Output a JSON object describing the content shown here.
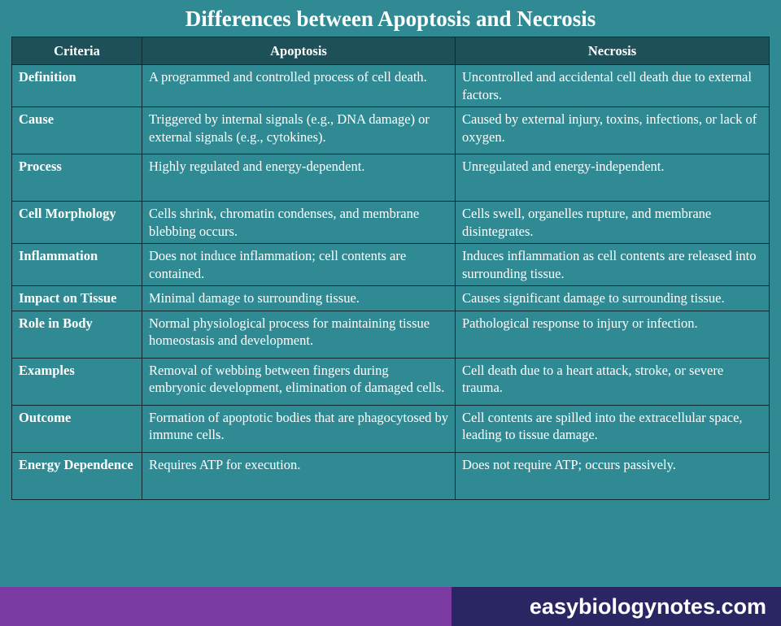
{
  "title": "Differences between Apoptosis and Necrosis",
  "columns": [
    "Criteria",
    "Apoptosis",
    "Necrosis"
  ],
  "rows": [
    {
      "criteria": "Definition",
      "a": "A programmed and controlled process of cell death.",
      "b": "Uncontrolled and accidental cell death due to external factors.",
      "tall": false
    },
    {
      "criteria": "Cause",
      "a": "Triggered by internal signals (e.g., DNA damage) or external signals (e.g., cytokines).",
      "b": "Caused by external injury, toxins, infections, or lack of oxygen.",
      "tall": true
    },
    {
      "criteria": "Process",
      "a": "Highly regulated and energy-dependent.",
      "b": "Unregulated and energy-independent.",
      "tall": true
    },
    {
      "criteria": "Cell Morphology",
      "a": "Cells shrink, chromatin condenses, and membrane blebbing occurs.",
      "b": "Cells swell, organelles rupture, and membrane disintegrates.",
      "tall": false
    },
    {
      "criteria": "Inflammation",
      "a": "Does not induce inflammation; cell contents are contained.",
      "b": "Induces inflammation as cell contents are released into surrounding tissue.",
      "tall": false
    },
    {
      "criteria": "Impact on Tissue",
      "a": "Minimal damage to surrounding tissue.",
      "b": "Causes significant damage to surrounding tissue.",
      "tall": false
    },
    {
      "criteria": "Role in Body",
      "a": "Normal physiological process for maintaining tissue homeostasis and development.",
      "b": "Pathological response to injury or infection.",
      "tall": true
    },
    {
      "criteria": "Examples",
      "a": "Removal of webbing between fingers during embryonic development, elimination of damaged cells.",
      "b": "Cell death due to a heart attack, stroke, or severe trauma.",
      "tall": true
    },
    {
      "criteria": "Outcome",
      "a": "Formation of apoptotic bodies that are phagocytosed by immune cells.",
      "b": "Cell contents are spilled into the extracellular space, leading to tissue damage.",
      "tall": true
    },
    {
      "criteria": "Energy Dependence",
      "a": "Requires ATP for execution.",
      "b": "Does not require ATP; occurs passively.",
      "tall": true
    }
  ],
  "footer": {
    "site": "easybiologynotes.com"
  },
  "colors": {
    "top_bg": "#2f8a94",
    "header_bg": "#1e505a",
    "border": "#0d2b30",
    "text": "#ffffff",
    "footer_left": "#7c3aa3",
    "footer_right": "#2a2563"
  }
}
